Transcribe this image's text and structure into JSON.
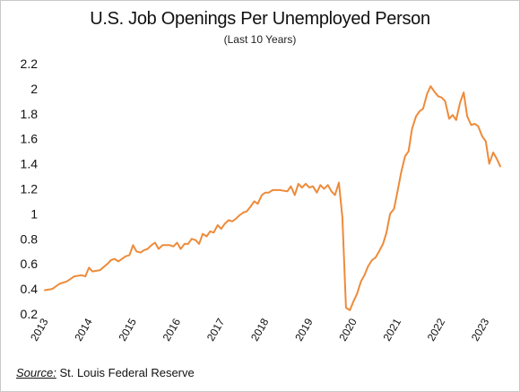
{
  "chart_data": {
    "type": "line",
    "title": "U.S. Job Openings Per Unemployed Person",
    "subtitle": "(Last 10 Years)",
    "xlabel": "",
    "ylabel": "",
    "ylim": [
      0.2,
      2.2
    ],
    "y_ticks": [
      "0.2",
      "0.4",
      "0.6",
      "0.8",
      "1",
      "1.2",
      "1.4",
      "1.6",
      "1.8",
      "2",
      "2.2"
    ],
    "x_ticks": [
      "2013",
      "2014",
      "2015",
      "2016",
      "2017",
      "2018",
      "2019",
      "2020",
      "2021",
      "2022",
      "2023"
    ],
    "grid": false,
    "line_color": "#ed8b3a",
    "series": [
      {
        "values": [
          [
            2013.0,
            0.39
          ],
          [
            2013.17,
            0.4
          ],
          [
            2013.33,
            0.44
          ],
          [
            2013.5,
            0.46
          ],
          [
            2013.67,
            0.5
          ],
          [
            2013.83,
            0.51
          ],
          [
            2013.92,
            0.5
          ],
          [
            2014.0,
            0.57
          ],
          [
            2014.08,
            0.54
          ],
          [
            2014.25,
            0.55
          ],
          [
            2014.42,
            0.6
          ],
          [
            2014.5,
            0.63
          ],
          [
            2014.58,
            0.64
          ],
          [
            2014.67,
            0.62
          ],
          [
            2014.83,
            0.66
          ],
          [
            2014.92,
            0.67
          ],
          [
            2015.0,
            0.75
          ],
          [
            2015.08,
            0.7
          ],
          [
            2015.17,
            0.69
          ],
          [
            2015.25,
            0.71
          ],
          [
            2015.33,
            0.72
          ],
          [
            2015.42,
            0.75
          ],
          [
            2015.5,
            0.77
          ],
          [
            2015.58,
            0.72
          ],
          [
            2015.67,
            0.75
          ],
          [
            2015.83,
            0.75
          ],
          [
            2015.92,
            0.74
          ],
          [
            2016.0,
            0.77
          ],
          [
            2016.08,
            0.72
          ],
          [
            2016.17,
            0.76
          ],
          [
            2016.25,
            0.76
          ],
          [
            2016.33,
            0.8
          ],
          [
            2016.42,
            0.79
          ],
          [
            2016.5,
            0.76
          ],
          [
            2016.58,
            0.84
          ],
          [
            2016.67,
            0.82
          ],
          [
            2016.75,
            0.86
          ],
          [
            2016.83,
            0.85
          ],
          [
            2016.92,
            0.91
          ],
          [
            2017.0,
            0.88
          ],
          [
            2017.08,
            0.92
          ],
          [
            2017.17,
            0.95
          ],
          [
            2017.25,
            0.94
          ],
          [
            2017.33,
            0.96
          ],
          [
            2017.42,
            0.99
          ],
          [
            2017.5,
            1.01
          ],
          [
            2017.58,
            1.02
          ],
          [
            2017.67,
            1.06
          ],
          [
            2017.75,
            1.1
          ],
          [
            2017.83,
            1.08
          ],
          [
            2017.92,
            1.15
          ],
          [
            2018.0,
            1.17
          ],
          [
            2018.08,
            1.17
          ],
          [
            2018.17,
            1.19
          ],
          [
            2018.33,
            1.19
          ],
          [
            2018.5,
            1.18
          ],
          [
            2018.58,
            1.22
          ],
          [
            2018.67,
            1.15
          ],
          [
            2018.75,
            1.24
          ],
          [
            2018.83,
            1.21
          ],
          [
            2018.92,
            1.24
          ],
          [
            2019.0,
            1.21
          ],
          [
            2019.08,
            1.22
          ],
          [
            2019.17,
            1.17
          ],
          [
            2019.25,
            1.23
          ],
          [
            2019.33,
            1.2
          ],
          [
            2019.42,
            1.23
          ],
          [
            2019.5,
            1.18
          ],
          [
            2019.58,
            1.15
          ],
          [
            2019.67,
            1.25
          ],
          [
            2019.75,
            0.97
          ],
          [
            2019.83,
            0.25
          ],
          [
            2019.92,
            0.23
          ],
          [
            2020.0,
            0.3
          ],
          [
            2020.08,
            0.36
          ],
          [
            2020.17,
            0.46
          ],
          [
            2020.25,
            0.51
          ],
          [
            2020.33,
            0.58
          ],
          [
            2020.42,
            0.63
          ],
          [
            2020.5,
            0.65
          ],
          [
            2020.58,
            0.7
          ],
          [
            2020.67,
            0.76
          ],
          [
            2020.75,
            0.85
          ],
          [
            2020.83,
            1.0
          ],
          [
            2020.92,
            1.04
          ],
          [
            2021.0,
            1.18
          ],
          [
            2021.08,
            1.33
          ],
          [
            2021.17,
            1.46
          ],
          [
            2021.25,
            1.5
          ],
          [
            2021.33,
            1.68
          ],
          [
            2021.42,
            1.78
          ],
          [
            2021.5,
            1.82
          ],
          [
            2021.58,
            1.84
          ],
          [
            2021.67,
            1.96
          ],
          [
            2021.75,
            2.02
          ],
          [
            2021.83,
            1.98
          ],
          [
            2021.92,
            1.94
          ],
          [
            2022.0,
            1.93
          ],
          [
            2022.08,
            1.9
          ],
          [
            2022.17,
            1.76
          ],
          [
            2022.25,
            1.79
          ],
          [
            2022.33,
            1.75
          ],
          [
            2022.42,
            1.89
          ],
          [
            2022.5,
            1.97
          ],
          [
            2022.58,
            1.78
          ],
          [
            2022.67,
            1.71
          ],
          [
            2022.75,
            1.72
          ],
          [
            2022.83,
            1.7
          ],
          [
            2022.92,
            1.62
          ],
          [
            2023.0,
            1.58
          ],
          [
            2023.08,
            1.4
          ],
          [
            2023.17,
            1.49
          ],
          [
            2023.25,
            1.44
          ],
          [
            2023.33,
            1.38
          ]
        ]
      }
    ]
  },
  "source": {
    "label": "Source:",
    "text": "St. Louis Federal Reserve"
  }
}
